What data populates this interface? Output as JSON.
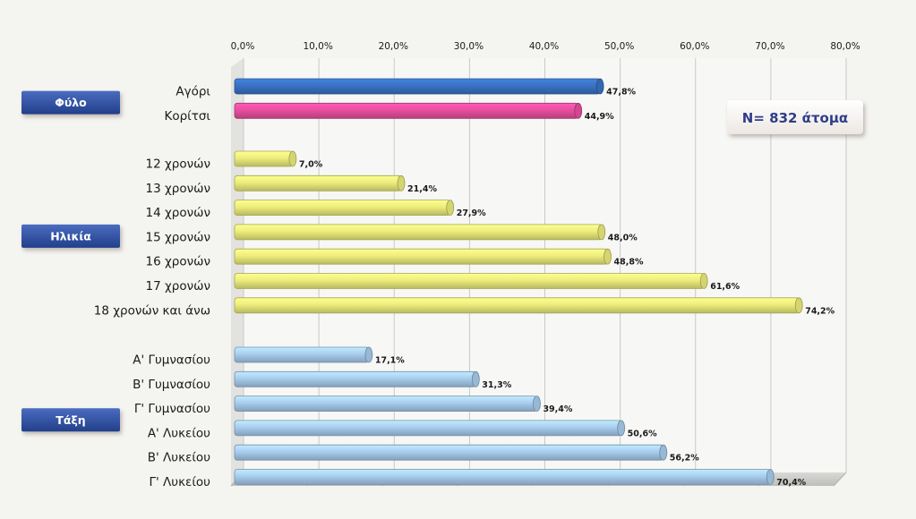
{
  "chart_data": {
    "type": "bar",
    "orientation": "horizontal",
    "title": "",
    "xlabel": "",
    "ylabel": "",
    "xlim": [
      0,
      80
    ],
    "x_ticks": [
      "0,0%",
      "10,0%",
      "20,0%",
      "30,0%",
      "40,0%",
      "50,0%",
      "60,0%",
      "70,0%",
      "80,0%"
    ],
    "grid": true,
    "annotation": "N= 832 άτομα",
    "groups": [
      {
        "name": "Φύλο",
        "categories": [
          {
            "label": "Αγόρι",
            "value": 47.8,
            "value_label": "47,8%",
            "color": "#3a72c4"
          },
          {
            "label": "Κορίτσι",
            "value": 44.9,
            "value_label": "44,9%",
            "color": "#e84fa0"
          }
        ]
      },
      {
        "name": "Ηλικία",
        "categories": [
          {
            "label": "12 χρονών",
            "value": 7.0,
            "value_label": "7,0%",
            "color": "#eded7c"
          },
          {
            "label": "13 χρονών",
            "value": 21.4,
            "value_label": "21,4%",
            "color": "#eded7c"
          },
          {
            "label": "14 χρονών",
            "value": 27.9,
            "value_label": "27,9%",
            "color": "#eded7c"
          },
          {
            "label": "15 χρονών",
            "value": 48.0,
            "value_label": "48,0%",
            "color": "#eded7c"
          },
          {
            "label": "16 χρονών",
            "value": 48.8,
            "value_label": "48,8%",
            "color": "#eded7c"
          },
          {
            "label": "17 χρονών",
            "value": 61.6,
            "value_label": "61,6%",
            "color": "#eded7c"
          },
          {
            "label": "18 χρονών και άνω",
            "value": 74.2,
            "value_label": "74,2%",
            "color": "#eded7c"
          }
        ]
      },
      {
        "name": "Τάξη",
        "categories": [
          {
            "label": "Α' Γυμνασίου",
            "value": 17.1,
            "value_label": "17,1%",
            "color": "#a8cdee"
          },
          {
            "label": "Β' Γυμνασίου",
            "value": 31.3,
            "value_label": "31,3%",
            "color": "#a8cdee"
          },
          {
            "label": "Γ' Γυμνασίου",
            "value": 39.4,
            "value_label": "39,4%",
            "color": "#a8cdee"
          },
          {
            "label": "Α' Λυκείου",
            "value": 50.6,
            "value_label": "50,6%",
            "color": "#a8cdee"
          },
          {
            "label": "Β' Λυκείου",
            "value": 56.2,
            "value_label": "56,2%",
            "color": "#a8cdee"
          },
          {
            "label": "Γ' Λυκείου",
            "value": 70.4,
            "value_label": "70,4%",
            "color": "#a8cdee"
          }
        ]
      }
    ],
    "group_badge_color": "#2f4f9a"
  }
}
